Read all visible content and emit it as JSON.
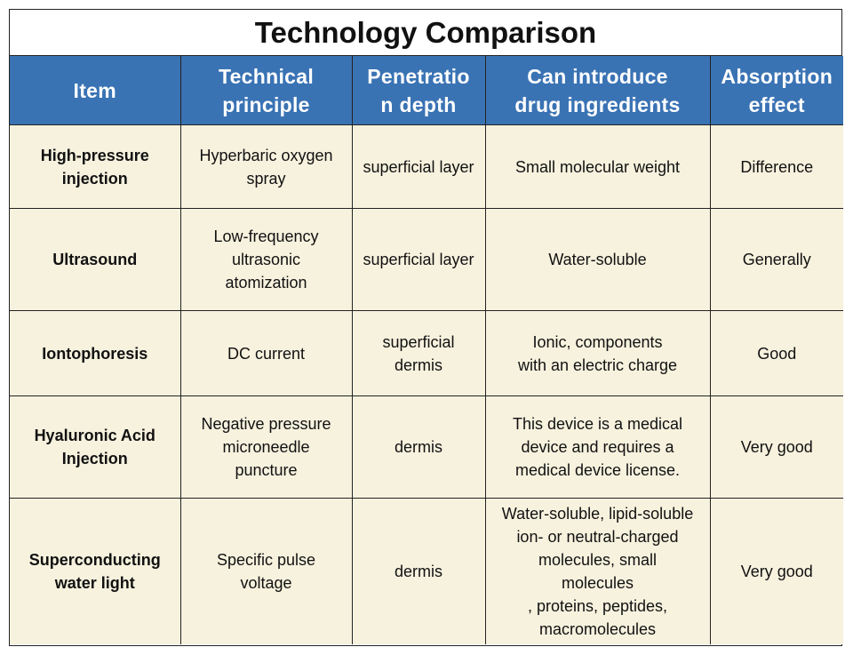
{
  "title": "Technology Comparison",
  "headers": [
    "Item",
    "Technical\nprinciple",
    "Penetratio\nn depth",
    "Can introduce\ndrug ingredients",
    "Absorption\neffect"
  ],
  "rows": [
    {
      "item": "High-pressure\ninjection",
      "principle": "Hyperbaric oxygen\nspray",
      "depth": "superficial layer",
      "drug": "Small molecular weight",
      "absorption": "Difference"
    },
    {
      "item": "Ultrasound",
      "principle": "Low-frequency\nultrasonic\natomization",
      "depth": "superficial layer",
      "drug": "Water-soluble",
      "absorption": "Generally"
    },
    {
      "item": "Iontophoresis",
      "principle": "DC current",
      "depth": "superficial\ndermis",
      "drug": "Ionic, components\nwith an electric charge",
      "absorption": "Good"
    },
    {
      "item": "Hyaluronic Acid\nInjection",
      "principle": "Negative pressure\nmicroneedle\npuncture",
      "depth": "dermis",
      "drug": "This device is a medical\ndevice and requires a\nmedical device license.",
      "absorption": "Very good"
    },
    {
      "item": "Superconducting\nwater light",
      "principle": "Specific pulse\nvoltage",
      "depth": "dermis",
      "drug": "Water-soluble, lipid-soluble\nion- or neutral-charged\nmolecules, small\nmolecules\n, proteins, peptides,\nmacromolecules",
      "absorption": "Very good"
    }
  ]
}
